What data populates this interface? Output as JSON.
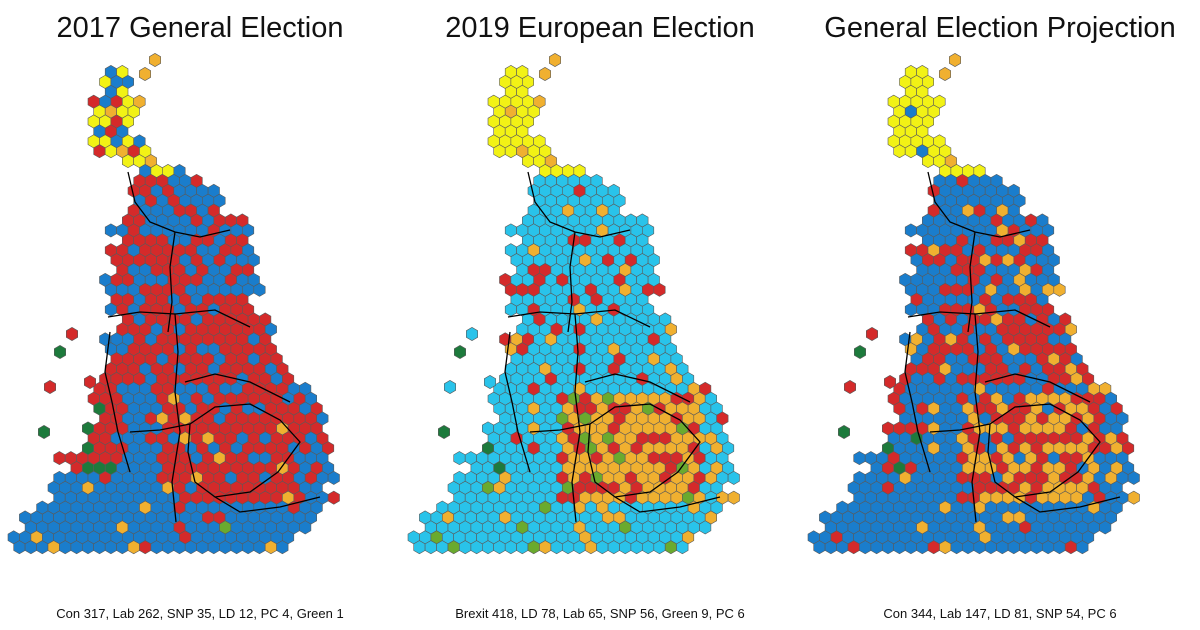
{
  "colors": {
    "Con": "#1a7dcc",
    "Lab": "#d42a2a",
    "SNP": "#f2f215",
    "LD": "#f0b030",
    "PC": "#1d7a3c",
    "Green": "#6aaa2e",
    "Brexit": "#29c3ea",
    "Other": "#8a9aa6"
  },
  "panels": [
    {
      "title": "2017 General Election",
      "caption": "Con 317, Lab 262, SNP 35, LD 12, PC 4, Green 1",
      "scheme": "ge2017"
    },
    {
      "title": "2019 European Election",
      "caption": "Brexit 418, LD 78, Lab 65, SNP 56, Green 9, PC 6",
      "scheme": "eu2019"
    },
    {
      "title": "General Election Projection",
      "caption": "Con 344, Lab 147, LD 81, SNP 54, PC 6",
      "scheme": "projection"
    }
  ]
}
